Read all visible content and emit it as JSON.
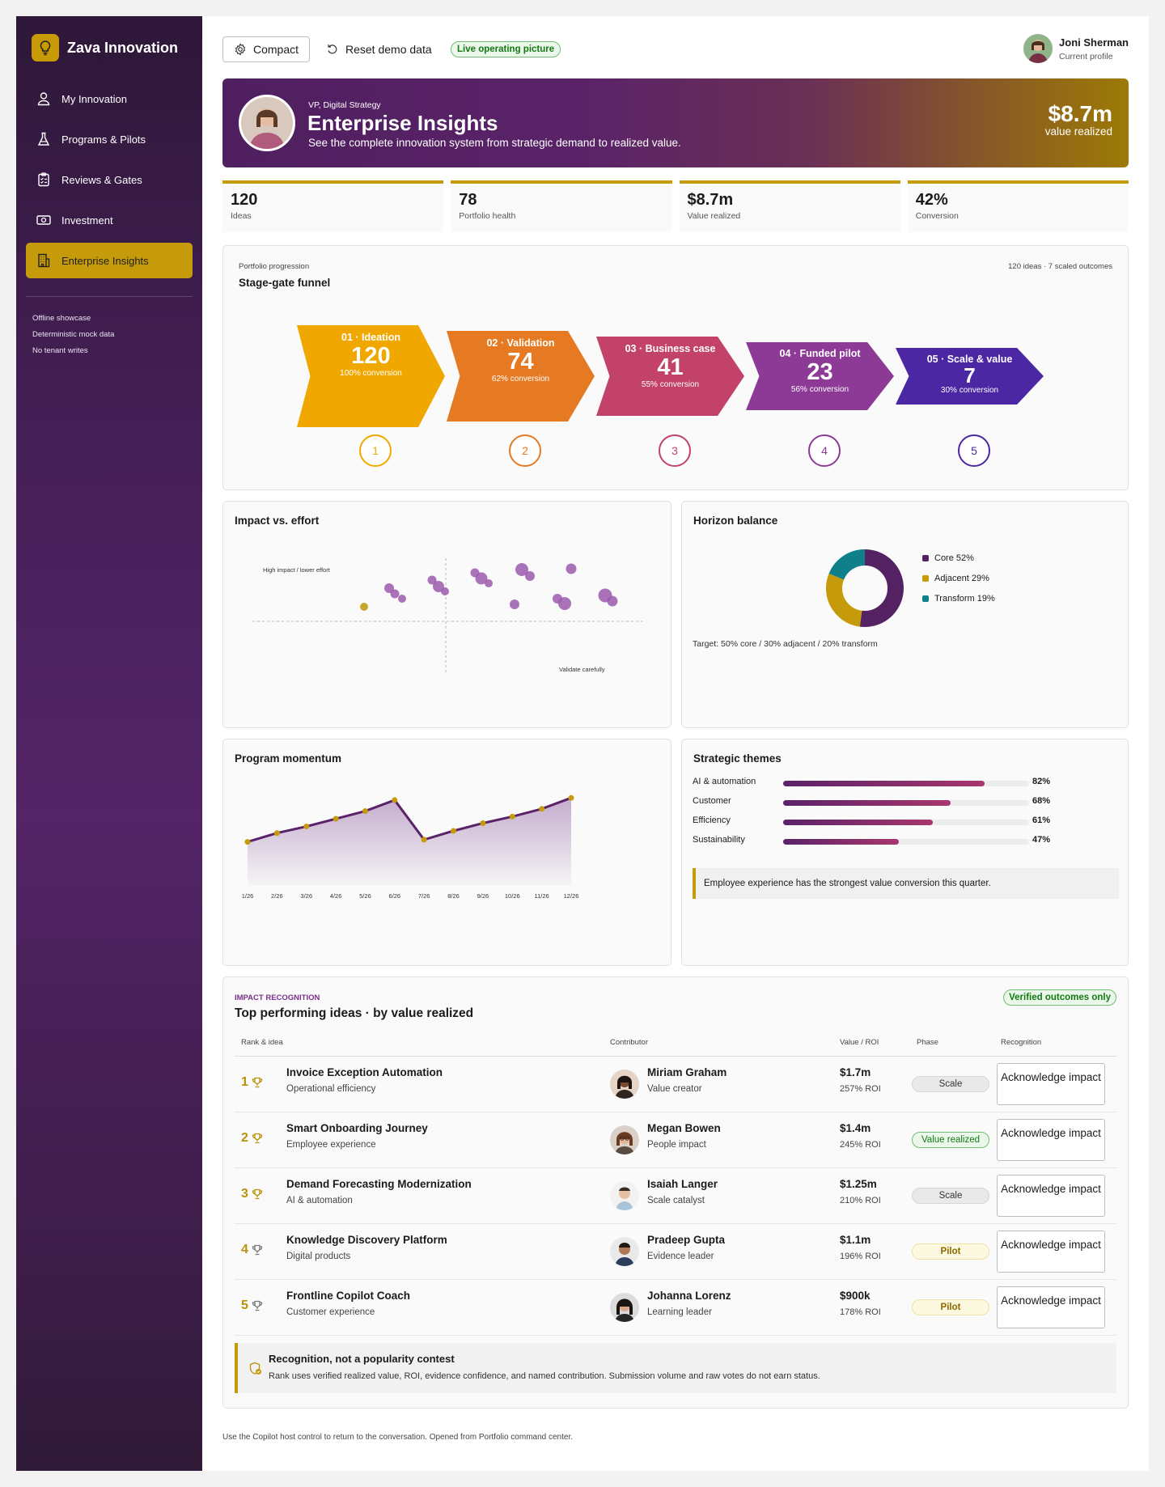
{
  "app": {
    "name": "Zava Innovation"
  },
  "sidebar": {
    "items": [
      {
        "label": "My Innovation",
        "icon": "person-icon"
      },
      {
        "label": "Programs & Pilots",
        "icon": "flask-icon"
      },
      {
        "label": "Reviews & Gates",
        "icon": "clipboard-icon"
      },
      {
        "label": "Investment",
        "icon": "money-icon"
      },
      {
        "label": "Enterprise Insights",
        "icon": "building-icon",
        "active": true
      }
    ],
    "notes": [
      "Offline showcase",
      "Deterministic mock data",
      "No tenant writes"
    ]
  },
  "topbar": {
    "compact_label": "Compact",
    "reset_label": "Reset demo data",
    "live_badge": "Live operating picture"
  },
  "profile": {
    "name": "Joni Sherman",
    "role": "Current profile"
  },
  "hero": {
    "eyebrow": "VP, Digital Strategy",
    "title": "Enterprise Insights",
    "subtitle": "See the complete innovation system from strategic demand to realized value.",
    "value": "$8.7m",
    "value_label": "value realized"
  },
  "kpis": [
    {
      "value": "120",
      "label": "Ideas"
    },
    {
      "value": "78",
      "label": "Portfolio health"
    },
    {
      "value": "$8.7m",
      "label": "Value realized"
    },
    {
      "value": "42%",
      "label": "Conversion"
    }
  ],
  "funnel": {
    "eyebrow": "Portfolio progression",
    "title": "Stage-gate funnel",
    "meta": "120 ideas · 7 scaled outcomes",
    "stages": [
      {
        "name": "01 · Ideation",
        "count": "120",
        "conversion": "100% conversion",
        "step": "1",
        "color": "#f0a800"
      },
      {
        "name": "02 · Validation",
        "count": "74",
        "conversion": "62% conversion",
        "step": "2",
        "color": "#e57a22"
      },
      {
        "name": "03 · Business case",
        "count": "41",
        "conversion": "55% conversion",
        "step": "3",
        "color": "#c2426a"
      },
      {
        "name": "04 · Funded pilot",
        "count": "23",
        "conversion": "56% conversion",
        "step": "4",
        "color": "#8d3a96"
      },
      {
        "name": "05 · Scale & value",
        "count": "7",
        "conversion": "30% conversion",
        "step": "5",
        "color": "#4b27a4"
      }
    ]
  },
  "scatter": {
    "title": "Impact vs. effort",
    "label_top": "High impact / lower effort",
    "label_bottom": "Validate carefully",
    "colors": {
      "primary": "#9b5aad",
      "highlight": "#c8a72e"
    }
  },
  "horizon": {
    "title": "Horizon balance",
    "segments": [
      {
        "label": "Core 52%",
        "value": 52,
        "color": "#542163"
      },
      {
        "label": "Adjacent 29%",
        "value": 29,
        "color": "#c59a0b"
      },
      {
        "label": "Transform 19%",
        "value": 19,
        "color": "#0f7f8a"
      }
    ],
    "target": "Target: 50% core / 30% adjacent / 20% transform"
  },
  "momentum": {
    "title": "Program momentum"
  },
  "themes": {
    "title": "Strategic themes",
    "items": [
      {
        "label": "AI & automation",
        "pct": "82%",
        "value": 82
      },
      {
        "label": "Customer",
        "pct": "68%",
        "value": 68
      },
      {
        "label": "Efficiency",
        "pct": "61%",
        "value": 61
      },
      {
        "label": "Sustainability",
        "pct": "47%",
        "value": 47
      }
    ],
    "note": "Employee experience has the strongest value conversion this quarter."
  },
  "chart_data": {
    "type": "line",
    "title": "Program momentum",
    "x": [
      "1/26",
      "2/26",
      "3/26",
      "4/26",
      "5/26",
      "6/26",
      "7/26",
      "8/26",
      "9/26",
      "10/26",
      "11/26",
      "12/26"
    ],
    "series": [
      {
        "values": [
          40,
          48,
          54,
          61,
          68,
          78,
          42,
          50,
          57,
          63,
          70,
          80
        ]
      }
    ],
    "ylim": [
      0,
      100
    ],
    "grid": false
  },
  "recognition": {
    "eyebrow": "IMPACT RECOGNITION",
    "title": "Top performing ideas · by value realized",
    "badge": "Verified outcomes only",
    "headers": {
      "rank": "Rank & idea",
      "contributor": "Contributor",
      "value": "Value / ROI",
      "phase": "Phase",
      "recognition": "Recognition"
    },
    "rows": [
      {
        "rank": "1",
        "title": "Invoice Exception Automation",
        "category": "Operational efficiency",
        "contributor": "Miriam Graham",
        "role": "Value creator",
        "value": "$1.7m",
        "roi": "257% ROI",
        "phase": "Scale",
        "phase_kind": "scale",
        "action": "Acknowledge impact"
      },
      {
        "rank": "2",
        "title": "Smart Onboarding Journey",
        "category": "Employee experience",
        "contributor": "Megan Bowen",
        "role": "People impact",
        "value": "$1.4m",
        "roi": "245% ROI",
        "phase": "Value realized",
        "phase_kind": "realized",
        "action": "Acknowledge impact"
      },
      {
        "rank": "3",
        "title": "Demand Forecasting Modernization",
        "category": "AI & automation",
        "contributor": "Isaiah Langer",
        "role": "Scale catalyst",
        "value": "$1.25m",
        "roi": "210% ROI",
        "phase": "Scale",
        "phase_kind": "scale",
        "action": "Acknowledge impact"
      },
      {
        "rank": "4",
        "title": "Knowledge Discovery Platform",
        "category": "Digital products",
        "contributor": "Pradeep Gupta",
        "role": "Evidence leader",
        "value": "$1.1m",
        "roi": "196% ROI",
        "phase": "Pilot",
        "phase_kind": "pilot",
        "action": "Acknowledge impact"
      },
      {
        "rank": "5",
        "title": "Frontline Copilot Coach",
        "category": "Customer experience",
        "contributor": "Johanna Lorenz",
        "role": "Learning leader",
        "value": "$900k",
        "roi": "178% ROI",
        "phase": "Pilot",
        "phase_kind": "pilot",
        "action": "Acknowledge impact"
      }
    ],
    "note_title": "Recognition, not a popularity contest",
    "note_text": "Rank uses verified realized value, ROI, evidence confidence, and named contribution. Submission volume and raw votes do not earn status."
  },
  "footer": "Use the Copilot host control to return to the conversation. Opened from Portfolio command center.",
  "colors": {
    "accent": "#c59a0b",
    "brand": "#542163",
    "success": "#137a13"
  }
}
